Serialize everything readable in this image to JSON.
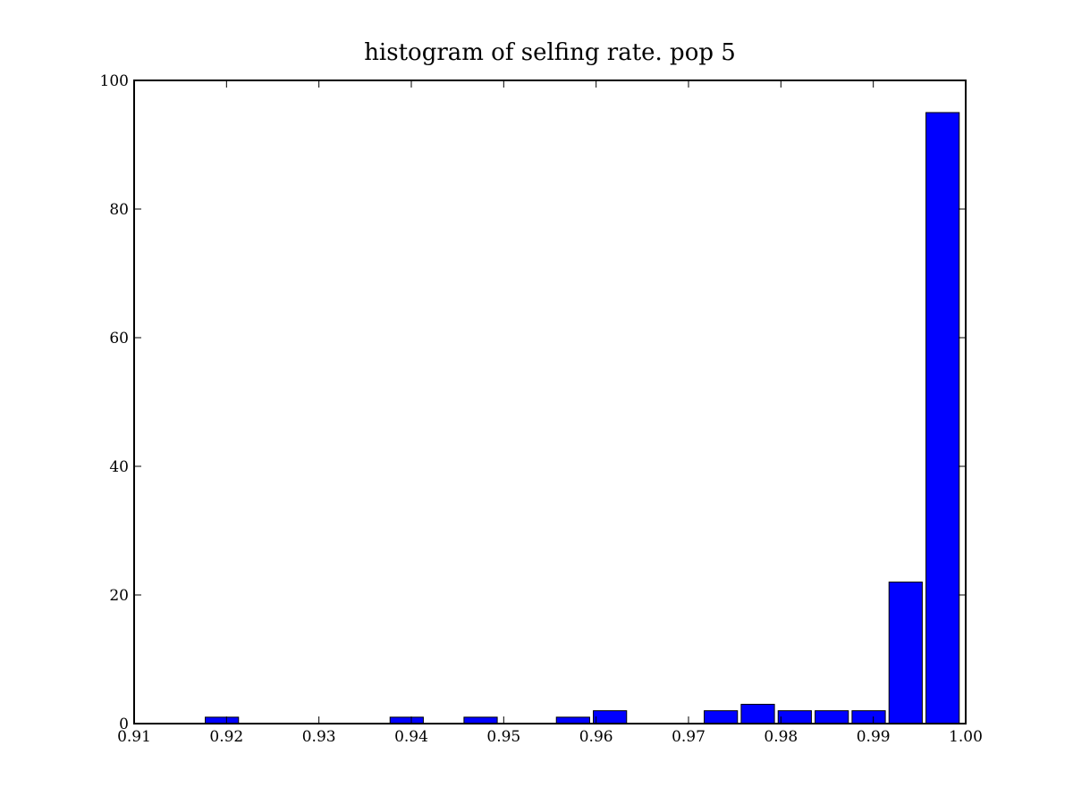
{
  "chart_data": {
    "type": "bar",
    "title": "histogram of selfing rate. pop 5",
    "xlabel": "",
    "ylabel": "",
    "xlim": [
      0.91,
      1.0
    ],
    "ylim": [
      0,
      100
    ],
    "grid": false,
    "legend": null,
    "bar_color": "#0000ff",
    "bar_edge_color": "#000000",
    "bin_width": 0.004,
    "bins": [
      {
        "left": 0.9175,
        "value": 1
      },
      {
        "left": 0.9215,
        "value": 0
      },
      {
        "left": 0.9255,
        "value": 0
      },
      {
        "left": 0.9295,
        "value": 0
      },
      {
        "left": 0.9335,
        "value": 0
      },
      {
        "left": 0.9375,
        "value": 1
      },
      {
        "left": 0.9415,
        "value": 0
      },
      {
        "left": 0.9455,
        "value": 1
      },
      {
        "left": 0.9495,
        "value": 0
      },
      {
        "left": 0.9535,
        "value": 0
      },
      {
        "left": 0.9555,
        "value": 1
      },
      {
        "left": 0.9595,
        "value": 2
      },
      {
        "left": 0.9635,
        "value": 0
      },
      {
        "left": 0.9675,
        "value": 0
      },
      {
        "left": 0.9715,
        "value": 2
      },
      {
        "left": 0.9755,
        "value": 3
      },
      {
        "left": 0.9795,
        "value": 2
      },
      {
        "left": 0.9835,
        "value": 2
      },
      {
        "left": 0.9875,
        "value": 2
      },
      {
        "left": 0.9915,
        "value": 22
      },
      {
        "left": 0.9955,
        "value": 95
      }
    ],
    "x_ticks": [
      "0.91",
      "0.92",
      "0.93",
      "0.94",
      "0.95",
      "0.96",
      "0.97",
      "0.98",
      "0.99",
      "1.00"
    ],
    "x_tick_values": [
      0.91,
      0.92,
      0.93,
      0.94,
      0.95,
      0.96,
      0.97,
      0.98,
      0.99,
      1.0
    ],
    "y_ticks": [
      "0",
      "20",
      "40",
      "60",
      "80",
      "100"
    ],
    "y_tick_values": [
      0,
      20,
      40,
      60,
      80,
      100
    ]
  }
}
